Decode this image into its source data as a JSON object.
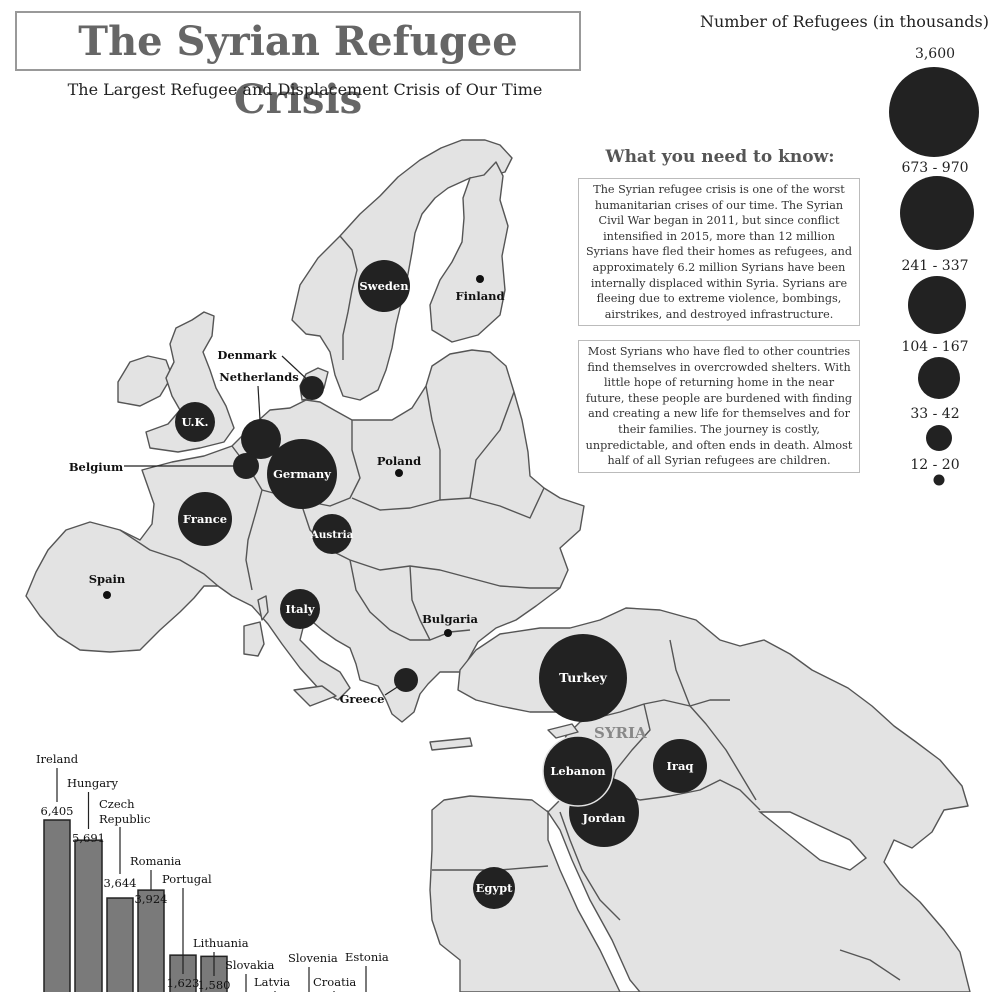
{
  "title": "The Syrian Refugee Crisis",
  "subtitle": "The Largest Refugee and Displacement Crisis of Our Time",
  "legend": {
    "title": "Number of Refugees (in thousands)",
    "items": [
      {
        "label": "3,600"
      },
      {
        "label": "673 - 970"
      },
      {
        "label": "241 - 337"
      },
      {
        "label": "104 - 167"
      },
      {
        "label": "33 - 42"
      },
      {
        "label": "12 - 20"
      }
    ]
  },
  "info": {
    "heading": "What you need to know:",
    "paragraph1": "The Syrian refugee crisis is one of the worst humanitarian crises of our time. The Syrian Civil War began in 2011, but since conflict intensified in 2015, more than 12 million Syrians have fled their homes as refugees, and approximately 6.2 million Syrians have been internally displaced within Syria. Syrians are fleeing due to extreme violence, bombings, airstrikes, and destroyed infrastructure.",
    "paragraph2": "Most Syrians who have fled to other countries find themselves in overcrowded shelters. With little hope of returning home in the near future, these people are burdened with finding and creating a new life for themselves and for their families. The journey is costly, unpredictable, and often ends in death. Almost half of all Syrian refugees are children."
  },
  "map_labels": {
    "sweden": "Sweden",
    "finland": "Finland",
    "denmark": "Denmark",
    "netherlands": "Netherlands",
    "uk": "U.K.",
    "belgium": "Belgium",
    "germany": "Germany",
    "poland": "Poland",
    "france": "France",
    "austria": "Austria",
    "spain": "Spain",
    "italy": "Italy",
    "bulgaria": "Bulgaria",
    "greece": "Greece",
    "turkey": "Turkey",
    "syria": "SYRIA",
    "lebanon": "Lebanon",
    "iraq": "Iraq",
    "jordan": "Jordan",
    "egypt": "Egypt"
  },
  "chart_data": {
    "type": "bar",
    "categories": [
      "Ireland",
      "Hungary",
      "Czech Republic",
      "Romania",
      "Portugal",
      "Lithuania",
      "Slovakia",
      "Latvia",
      "Slovenia",
      "Croatia",
      "Estonia"
    ],
    "values": [
      6405,
      5691,
      3644,
      3924,
      1623,
      1580,
      null,
      null,
      null,
      null,
      null
    ],
    "value_labels": [
      "6,405",
      "5,691",
      "3,644",
      "3,924",
      "1,623",
      "1,580",
      "",
      "",
      "",
      "",
      ""
    ]
  },
  "colors": {
    "land": "#e3e3e3",
    "border": "#555555",
    "bubble": "#222222",
    "bar": "#7a7a7a",
    "title": "#666666"
  }
}
